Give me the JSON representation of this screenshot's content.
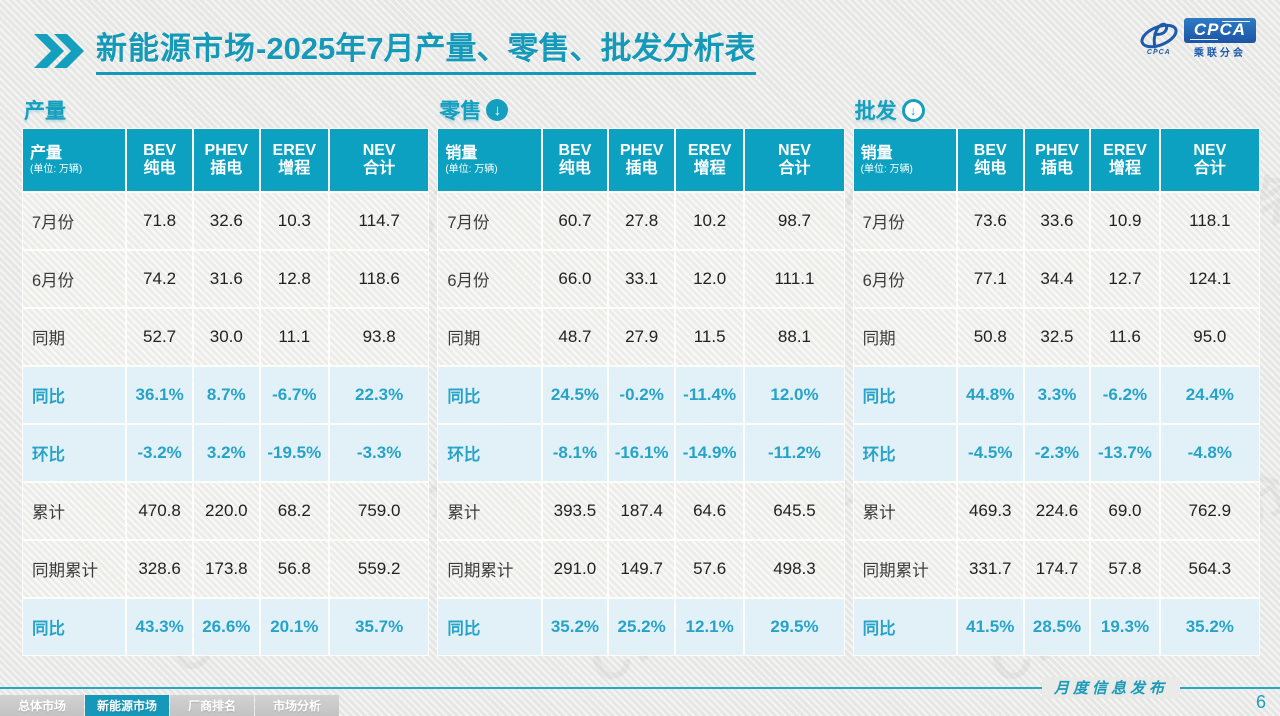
{
  "title": {
    "main": "新能源市场",
    "rest": "-2025年7月产量、零售、批发分析表"
  },
  "logo": {
    "acronym": "CPCA",
    "acronym_small": "CPCA",
    "subtitle": "乘联分会",
    "brand_blue": "#1c5aab"
  },
  "watermark": "CPCA 乘联分会",
  "colors": {
    "teal": "#149fbf",
    "table_header_bg": "#0da1c1",
    "highlight_bg": "#e2f1f8",
    "highlight_text": "#27a3c8"
  },
  "sections": [
    {
      "title": "产量",
      "icon": "none",
      "first_col_title": "产量",
      "unit": "(单位: 万辆)",
      "columns": [
        [
          "BEV",
          "纯电"
        ],
        [
          "PHEV",
          "插电"
        ],
        [
          "EREV",
          "增程"
        ],
        [
          "NEV",
          "合计"
        ]
      ],
      "rows": [
        {
          "label": "7月份",
          "type": "data",
          "values": [
            "71.8",
            "32.6",
            "10.3",
            "114.7"
          ]
        },
        {
          "label": "6月份",
          "type": "data",
          "values": [
            "74.2",
            "31.6",
            "12.8",
            "118.6"
          ]
        },
        {
          "label": "同期",
          "type": "data",
          "values": [
            "52.7",
            "30.0",
            "11.1",
            "93.8"
          ]
        },
        {
          "label": "同比",
          "type": "highlight",
          "values": [
            "36.1%",
            "8.7%",
            "-6.7%",
            "22.3%"
          ]
        },
        {
          "label": "环比",
          "type": "highlight",
          "values": [
            "-3.2%",
            "3.2%",
            "-19.5%",
            "-3.3%"
          ]
        },
        {
          "label": "累计",
          "type": "data",
          "values": [
            "470.8",
            "220.0",
            "68.2",
            "759.0"
          ]
        },
        {
          "label": "同期累计",
          "type": "data",
          "values": [
            "328.6",
            "173.8",
            "56.8",
            "559.2"
          ]
        },
        {
          "label": "同比",
          "type": "highlight",
          "values": [
            "43.3%",
            "26.6%",
            "20.1%",
            "35.7%"
          ]
        }
      ]
    },
    {
      "title": "零售",
      "icon": "down-arrow-circle-filled",
      "first_col_title": "销量",
      "unit": "(单位: 万辆)",
      "columns": [
        [
          "BEV",
          "纯电"
        ],
        [
          "PHEV",
          "插电"
        ],
        [
          "EREV",
          "增程"
        ],
        [
          "NEV",
          "合计"
        ]
      ],
      "rows": [
        {
          "label": "7月份",
          "type": "data",
          "values": [
            "60.7",
            "27.8",
            "10.2",
            "98.7"
          ]
        },
        {
          "label": "6月份",
          "type": "data",
          "values": [
            "66.0",
            "33.1",
            "12.0",
            "111.1"
          ]
        },
        {
          "label": "同期",
          "type": "data",
          "values": [
            "48.7",
            "27.9",
            "11.5",
            "88.1"
          ]
        },
        {
          "label": "同比",
          "type": "highlight",
          "values": [
            "24.5%",
            "-0.2%",
            "-11.4%",
            "12.0%"
          ]
        },
        {
          "label": "环比",
          "type": "highlight",
          "values": [
            "-8.1%",
            "-16.1%",
            "-14.9%",
            "-11.2%"
          ]
        },
        {
          "label": "累计",
          "type": "data",
          "values": [
            "393.5",
            "187.4",
            "64.6",
            "645.5"
          ]
        },
        {
          "label": "同期累计",
          "type": "data",
          "values": [
            "291.0",
            "149.7",
            "57.6",
            "498.3"
          ]
        },
        {
          "label": "同比",
          "type": "highlight",
          "values": [
            "35.2%",
            "25.2%",
            "12.1%",
            "29.5%"
          ]
        }
      ]
    },
    {
      "title": "批发",
      "icon": "down-arrow-circle-ring",
      "first_col_title": "销量",
      "unit": "(单位: 万辆)",
      "columns": [
        [
          "BEV",
          "纯电"
        ],
        [
          "PHEV",
          "插电"
        ],
        [
          "EREV",
          "增程"
        ],
        [
          "NEV",
          "合计"
        ]
      ],
      "rows": [
        {
          "label": "7月份",
          "type": "data",
          "values": [
            "73.6",
            "33.6",
            "10.9",
            "118.1"
          ]
        },
        {
          "label": "6月份",
          "type": "data",
          "values": [
            "77.1",
            "34.4",
            "12.7",
            "124.1"
          ]
        },
        {
          "label": "同期",
          "type": "data",
          "values": [
            "50.8",
            "32.5",
            "11.6",
            "95.0"
          ]
        },
        {
          "label": "同比",
          "type": "highlight",
          "values": [
            "44.8%",
            "3.3%",
            "-6.2%",
            "24.4%"
          ]
        },
        {
          "label": "环比",
          "type": "highlight",
          "values": [
            "-4.5%",
            "-2.3%",
            "-13.7%",
            "-4.8%"
          ]
        },
        {
          "label": "累计",
          "type": "data",
          "values": [
            "469.3",
            "224.6",
            "69.0",
            "762.9"
          ]
        },
        {
          "label": "同期累计",
          "type": "data",
          "values": [
            "331.7",
            "174.7",
            "57.8",
            "564.3"
          ]
        },
        {
          "label": "同比",
          "type": "highlight",
          "values": [
            "41.5%",
            "28.5%",
            "19.3%",
            "35.2%"
          ]
        }
      ]
    }
  ],
  "footer": {
    "tabs": [
      {
        "label": "总体市场",
        "active": false
      },
      {
        "label": "新能源市场",
        "active": true
      },
      {
        "label": "厂商排名",
        "active": false
      },
      {
        "label": "市场分析",
        "active": false
      }
    ],
    "publish_label": "月度信息发布",
    "page_number": "6"
  }
}
